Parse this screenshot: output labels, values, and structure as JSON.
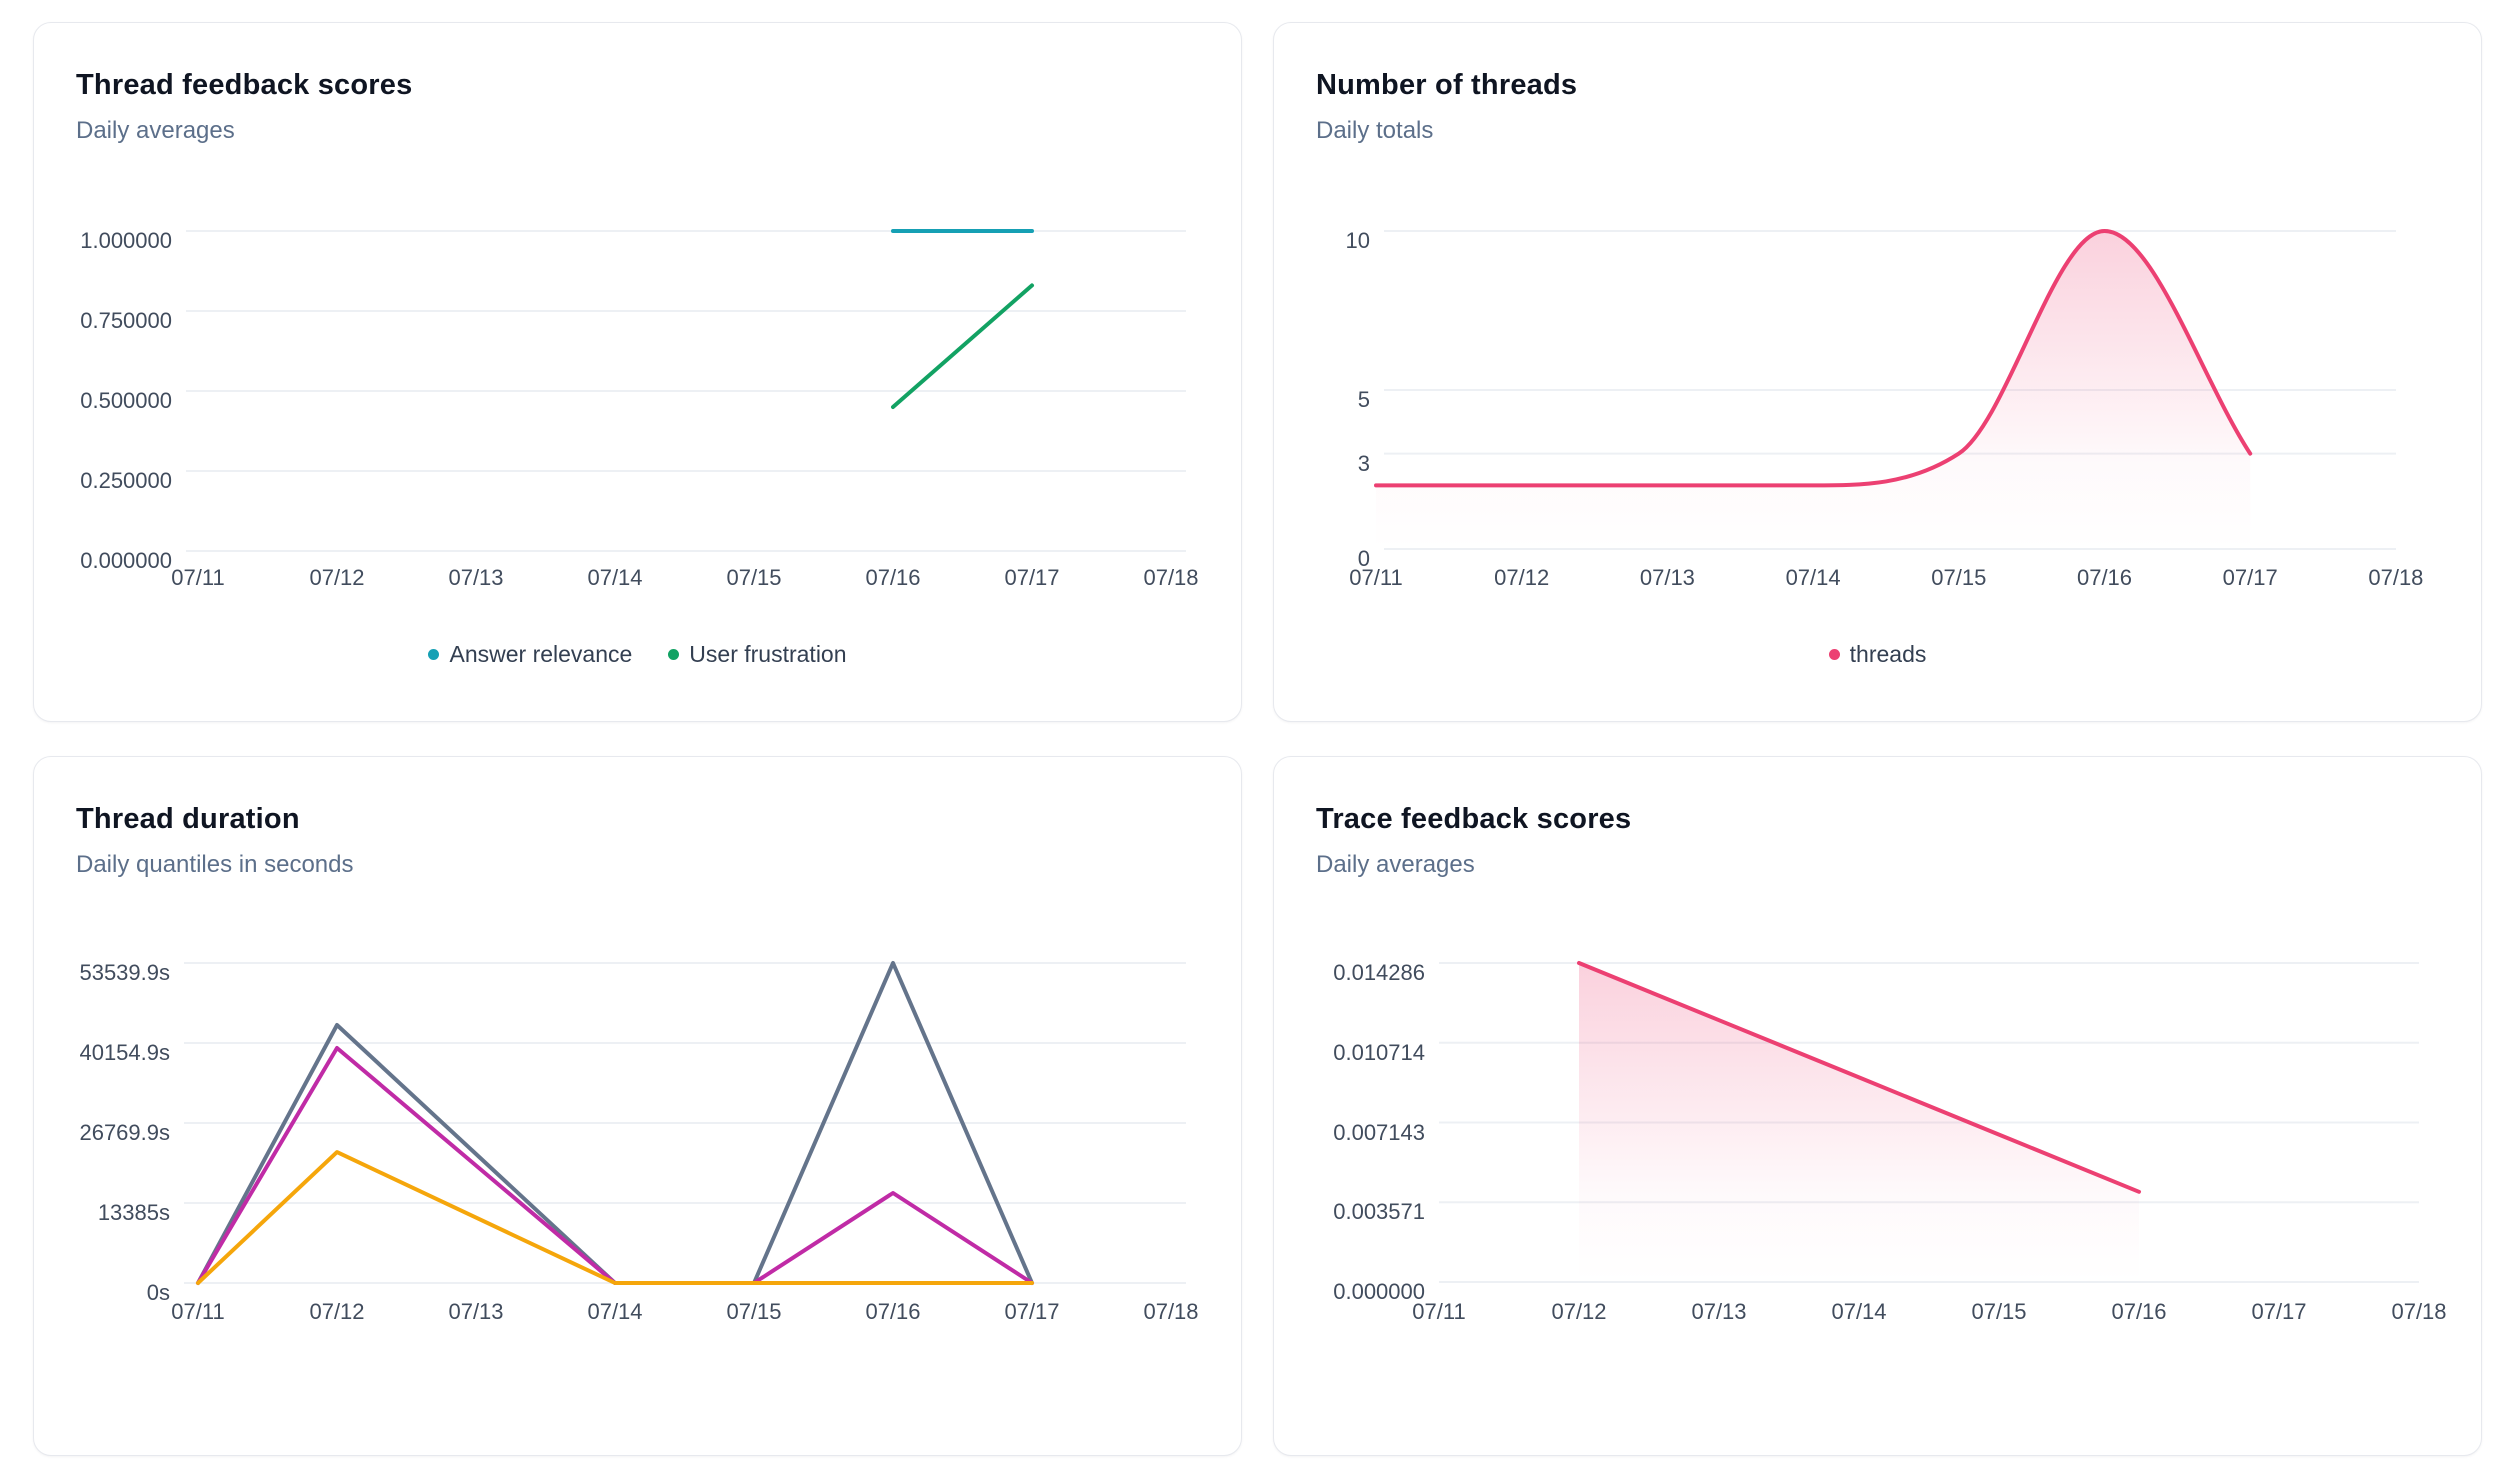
{
  "chart_data": [
    {
      "id": "thread-feedback-scores",
      "type": "line",
      "title": "Thread feedback scores",
      "subtitle": "Daily averages",
      "categories": [
        "07/11",
        "07/12",
        "07/13",
        "07/14",
        "07/15",
        "07/16",
        "07/17",
        "07/18"
      ],
      "ylim": [
        0,
        1.0
      ],
      "grid": "horizontal",
      "y_ticks": [
        {
          "label": "1.000000",
          "value": 1.0
        },
        {
          "label": "0.750000",
          "value": 0.75
        },
        {
          "label": "0.500000",
          "value": 0.5
        },
        {
          "label": "0.250000",
          "value": 0.25
        },
        {
          "label": "0.000000",
          "value": 0.0
        }
      ],
      "series": [
        {
          "name": "Answer relevance",
          "color": "#16a0b4",
          "smooth": false,
          "fill": "none",
          "values": [
            null,
            null,
            null,
            null,
            null,
            1.0,
            1.0,
            null
          ]
        },
        {
          "name": "User frustration",
          "color": "#12a263",
          "smooth": false,
          "fill": "none",
          "values": [
            null,
            null,
            null,
            null,
            null,
            0.45,
            0.83,
            null
          ]
        }
      ],
      "legend": [
        "Answer relevance",
        "User frustration"
      ],
      "legend_position": "bottom-center"
    },
    {
      "id": "number-of-threads",
      "type": "area",
      "title": "Number of threads",
      "subtitle": "Daily totals",
      "categories": [
        "07/11",
        "07/12",
        "07/13",
        "07/14",
        "07/15",
        "07/16",
        "07/17",
        "07/18"
      ],
      "ylim": [
        0,
        10
      ],
      "grid": "horizontal",
      "y_ticks": [
        {
          "label": "10",
          "value": 10
        },
        {
          "label": "5",
          "value": 5
        },
        {
          "label": "3",
          "value": 3
        },
        {
          "label": "0",
          "value": 0
        }
      ],
      "series": [
        {
          "name": "threads",
          "color": "#ec4072",
          "smooth": true,
          "fill": "gradient",
          "values": [
            2,
            2,
            2,
            2,
            3,
            10,
            3,
            null
          ]
        }
      ],
      "legend": [
        "threads"
      ],
      "legend_position": "bottom-center"
    },
    {
      "id": "thread-duration",
      "type": "line",
      "title": "Thread duration",
      "subtitle": "Daily quantiles in seconds",
      "categories": [
        "07/11",
        "07/12",
        "07/13",
        "07/14",
        "07/15",
        "07/16",
        "07/17",
        "07/18"
      ],
      "ylim": [
        0,
        53539.9
      ],
      "grid": "horizontal",
      "y_ticks": [
        {
          "label": "53539.9s",
          "value": 53539.9
        },
        {
          "label": "40154.9s",
          "value": 40154.9
        },
        {
          "label": "26769.9s",
          "value": 26769.9
        },
        {
          "label": "13385s",
          "value": 13385
        },
        {
          "label": "0s",
          "value": 0
        }
      ],
      "series": [
        {
          "name": "slate",
          "color": "#64748b",
          "smooth": false,
          "fill": "none",
          "values": [
            0,
            43170,
            21585,
            0,
            0,
            53539.9,
            0,
            null
          ]
        },
        {
          "name": "magenta",
          "color": "#c02ba6",
          "smooth": false,
          "fill": "none",
          "values": [
            0,
            39320,
            19660,
            0,
            0,
            15050,
            0,
            null
          ]
        },
        {
          "name": "amber",
          "color": "#f5a60b",
          "smooth": false,
          "fill": "none",
          "values": [
            0,
            21900,
            10950,
            0,
            0,
            0,
            0,
            null
          ]
        }
      ],
      "legend": [],
      "legend_position": "bottom-center"
    },
    {
      "id": "trace-feedback-scores",
      "type": "area",
      "title": "Trace feedback scores",
      "subtitle": "Daily averages",
      "categories": [
        "07/11",
        "07/12",
        "07/13",
        "07/14",
        "07/15",
        "07/16",
        "07/17",
        "07/18"
      ],
      "ylim": [
        0,
        0.014286
      ],
      "grid": "horizontal",
      "y_ticks": [
        {
          "label": "0.014286",
          "value": 0.014286
        },
        {
          "label": "0.010714",
          "value": 0.010714
        },
        {
          "label": "0.007143",
          "value": 0.007143
        },
        {
          "label": "0.003571",
          "value": 0.003571
        },
        {
          "label": "0.000000",
          "value": 0.0
        }
      ],
      "series": [
        {
          "name": "rose",
          "color": "#ec4072",
          "smooth": false,
          "fill": "gradient",
          "values": [
            null,
            0.014286,
            0.011725,
            0.009163,
            0.006602,
            0.00404,
            null,
            null
          ]
        }
      ],
      "legend": [],
      "legend_position": "bottom-center"
    }
  ],
  "colors": {
    "teal": "#16a0b4",
    "green": "#12a263",
    "rose": "#ec4072",
    "slate": "#64748b",
    "magenta": "#c02ba6",
    "amber": "#f5a60b",
    "gridline": "#edf0f4",
    "axis_text": "#414c5d",
    "subtitle_text": "#5c6f8a"
  }
}
